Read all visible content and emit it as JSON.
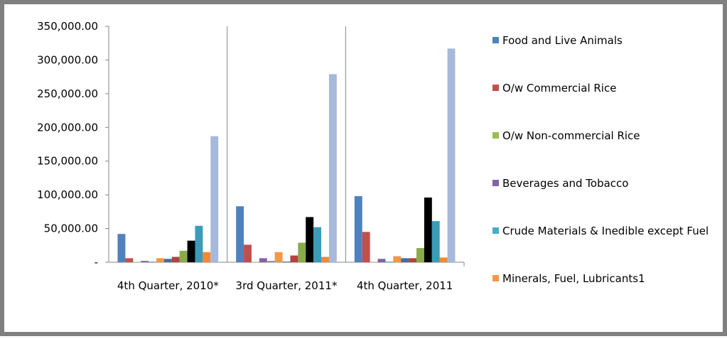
{
  "chart_data": {
    "type": "bar",
    "categories": [
      "4th Quarter, 2010*",
      "3rd Quarter, 2011*",
      "4th Quarter, 2011"
    ],
    "series": [
      {
        "name": "Food and Live Animals",
        "color": "#4f81bd",
        "values": [
          42000,
          83000,
          98000
        ]
      },
      {
        "name": "O/w Commercial Rice",
        "color": "#c0504d",
        "values": [
          6000,
          26000,
          45000
        ]
      },
      {
        "name": "O/w Non-commercial Rice",
        "color": "#9bbb59",
        "values": [
          500,
          500,
          500
        ]
      },
      {
        "name": "Beverages and Tobacco",
        "color": "#8064a2",
        "values": [
          2000,
          6000,
          5000
        ]
      },
      {
        "name": "Crude Materials & Inedible except Fuel",
        "color": "#4bacc6",
        "values": [
          1000,
          2000,
          1000
        ]
      },
      {
        "name": "Minerals, Fuel, Lubricants1",
        "color": "#f79646",
        "values": [
          6000,
          15000,
          9000
        ]
      },
      {
        "color": "#3f6fa8",
        "values": [
          5000,
          1000,
          6000
        ]
      },
      {
        "color": "#b04440",
        "values": [
          8000,
          10000,
          6000
        ]
      },
      {
        "color": "#8aab4a",
        "values": [
          17000,
          29000,
          21000
        ]
      },
      {
        "color": "#7059945",
        "values": [
          32000,
          67000,
          96000
        ]
      },
      {
        "color": "#3a9cb8",
        "values": [
          54000,
          52000,
          61000
        ]
      },
      {
        "color": "#f08a36",
        "values": [
          15000,
          8000,
          7000
        ]
      },
      {
        "color": "#a7b9da",
        "values": [
          187000,
          279000,
          317000
        ]
      }
    ],
    "ylim": [
      0,
      350000
    ],
    "yticks": [
      {
        "value": 0,
        "label": "-"
      },
      {
        "value": 50000,
        "label": "50,000.00"
      },
      {
        "value": 100000,
        "label": "100,000.00"
      },
      {
        "value": 150000,
        "label": "150,000.00"
      },
      {
        "value": 200000,
        "label": "200,000.00"
      },
      {
        "value": 250000,
        "label": "250,000.00"
      },
      {
        "value": 300000,
        "label": "300,000.00"
      },
      {
        "value": 350000,
        "label": "350,000.00"
      }
    ],
    "grid": false
  }
}
